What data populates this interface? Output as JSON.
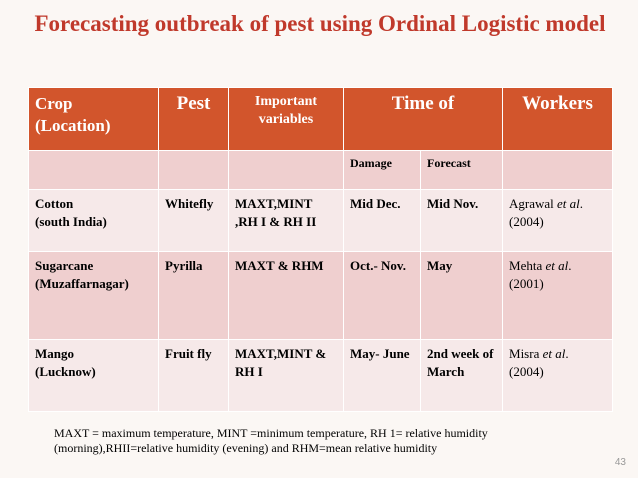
{
  "title": "Forecasting outbreak of pest  using Ordinal Logistic model",
  "header": {
    "crop": "Crop (Location)",
    "pest": "Pest",
    "variables": "Important variables",
    "time_of": "Time of",
    "workers": "Workers",
    "damage": "Damage",
    "forecast": "Forecast"
  },
  "rows": [
    {
      "crop": "Cotton",
      "location": "(south India)",
      "pest": "Whitefly",
      "variables": "MAXT,MINT ,RH I & RH II",
      "damage": "Mid Dec.",
      "forecast": "Mid Nov.",
      "workers_name": "Agrawal ",
      "workers_etal": "et al",
      "workers_dot": ".",
      "workers_year": "(2004)"
    },
    {
      "crop": "Sugarcane",
      "location": "(Muzaffarnagar)",
      "pest": "Pyrilla",
      "variables": "MAXT & RHM",
      "damage": "Oct.- Nov.",
      "forecast": "May",
      "workers_name": "Mehta ",
      "workers_etal": "et al",
      "workers_dot": ".",
      "workers_year": "(2001)"
    },
    {
      "crop": "Mango",
      "location": "(Lucknow)",
      "pest": "Fruit fly",
      "variables": "MAXT,MINT & RH I",
      "damage": "May- June",
      "forecast": "2nd week of March",
      "workers_name": "Misra ",
      "workers_etal": "et al",
      "workers_dot": ".",
      "workers_year": "(2004)"
    }
  ],
  "footnote": "MAXT = maximum temperature, MINT =minimum temperature, RH 1= relative humidity (morning),RHII=relative humidity (evening) and RHM=mean relative humidity",
  "page_number": "43"
}
